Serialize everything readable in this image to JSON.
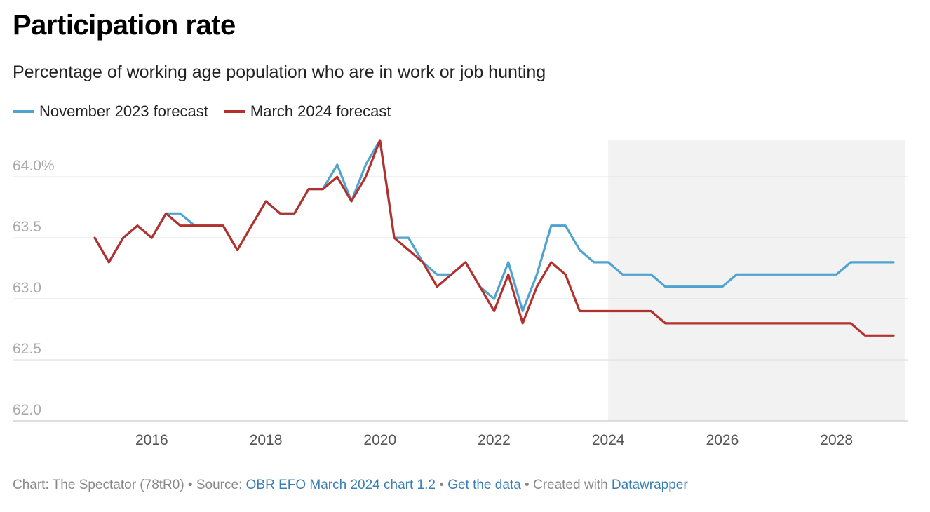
{
  "chart_data": {
    "type": "line",
    "title": "Participation rate",
    "subtitle": "Percentage of working age population who are in work or job hunting",
    "ylim": [
      62.0,
      64.3
    ],
    "xlim": [
      2015,
      2029
    ],
    "y_ticks": [
      "62.0",
      "62.5",
      "63.0",
      "63.5",
      "64.0%"
    ],
    "y_tick_values": [
      62.0,
      62.5,
      63.0,
      63.5,
      64.0
    ],
    "x_ticks": [
      "2016",
      "2018",
      "2020",
      "2022",
      "2024",
      "2026",
      "2028"
    ],
    "x_tick_values": [
      2016,
      2018,
      2020,
      2022,
      2024,
      2026,
      2028
    ],
    "grid": true,
    "legend_position": "top-left",
    "forecast_shaded_from": 2024,
    "forecast_shaded_to": 2029.2,
    "series": [
      {
        "name": "November 2023 forecast",
        "color": "#4ea3cf",
        "points": [
          [
            2015.0,
            63.5
          ],
          [
            2015.25,
            63.3
          ],
          [
            2015.5,
            63.5
          ],
          [
            2015.75,
            63.6
          ],
          [
            2016.0,
            63.5
          ],
          [
            2016.25,
            63.7
          ],
          [
            2016.5,
            63.7
          ],
          [
            2016.75,
            63.6
          ],
          [
            2017.0,
            63.6
          ],
          [
            2017.25,
            63.6
          ],
          [
            2017.5,
            63.4
          ],
          [
            2017.75,
            63.6
          ],
          [
            2018.0,
            63.8
          ],
          [
            2018.25,
            63.7
          ],
          [
            2018.5,
            63.7
          ],
          [
            2018.75,
            63.9
          ],
          [
            2019.0,
            63.9
          ],
          [
            2019.25,
            64.1
          ],
          [
            2019.5,
            63.8
          ],
          [
            2019.75,
            64.1
          ],
          [
            2020.0,
            64.3
          ],
          [
            2020.25,
            63.5
          ],
          [
            2020.5,
            63.5
          ],
          [
            2020.75,
            63.3
          ],
          [
            2021.0,
            63.2
          ],
          [
            2021.25,
            63.2
          ],
          [
            2021.5,
            63.3
          ],
          [
            2021.75,
            63.1
          ],
          [
            2022.0,
            63.0
          ],
          [
            2022.25,
            63.3
          ],
          [
            2022.5,
            62.9
          ],
          [
            2022.75,
            63.2
          ],
          [
            2023.0,
            63.6
          ],
          [
            2023.25,
            63.6
          ],
          [
            2023.5,
            63.4
          ],
          [
            2023.75,
            63.3
          ],
          [
            2024.0,
            63.3
          ],
          [
            2024.25,
            63.2
          ],
          [
            2024.5,
            63.2
          ],
          [
            2024.75,
            63.2
          ],
          [
            2025.0,
            63.1
          ],
          [
            2025.25,
            63.1
          ],
          [
            2025.5,
            63.1
          ],
          [
            2025.75,
            63.1
          ],
          [
            2026.0,
            63.1
          ],
          [
            2026.25,
            63.2
          ],
          [
            2026.5,
            63.2
          ],
          [
            2026.75,
            63.2
          ],
          [
            2027.0,
            63.2
          ],
          [
            2027.25,
            63.2
          ],
          [
            2027.5,
            63.2
          ],
          [
            2027.75,
            63.2
          ],
          [
            2028.0,
            63.2
          ],
          [
            2028.25,
            63.3
          ],
          [
            2028.5,
            63.3
          ],
          [
            2028.75,
            63.3
          ],
          [
            2029.0,
            63.3
          ]
        ]
      },
      {
        "name": "March 2024 forecast",
        "color": "#b3312d",
        "points": [
          [
            2015.0,
            63.5
          ],
          [
            2015.25,
            63.3
          ],
          [
            2015.5,
            63.5
          ],
          [
            2015.75,
            63.6
          ],
          [
            2016.0,
            63.5
          ],
          [
            2016.25,
            63.7
          ],
          [
            2016.5,
            63.6
          ],
          [
            2016.75,
            63.6
          ],
          [
            2017.0,
            63.6
          ],
          [
            2017.25,
            63.6
          ],
          [
            2017.5,
            63.4
          ],
          [
            2017.75,
            63.6
          ],
          [
            2018.0,
            63.8
          ],
          [
            2018.25,
            63.7
          ],
          [
            2018.5,
            63.7
          ],
          [
            2018.75,
            63.9
          ],
          [
            2019.0,
            63.9
          ],
          [
            2019.25,
            64.0
          ],
          [
            2019.5,
            63.8
          ],
          [
            2019.75,
            64.0
          ],
          [
            2020.0,
            64.3
          ],
          [
            2020.25,
            63.5
          ],
          [
            2020.5,
            63.4
          ],
          [
            2020.75,
            63.3
          ],
          [
            2021.0,
            63.1
          ],
          [
            2021.25,
            63.2
          ],
          [
            2021.5,
            63.3
          ],
          [
            2021.75,
            63.1
          ],
          [
            2022.0,
            62.9
          ],
          [
            2022.25,
            63.2
          ],
          [
            2022.5,
            62.8
          ],
          [
            2022.75,
            63.1
          ],
          [
            2023.0,
            63.3
          ],
          [
            2023.25,
            63.2
          ],
          [
            2023.5,
            62.9
          ],
          [
            2023.75,
            62.9
          ],
          [
            2024.0,
            62.9
          ],
          [
            2024.25,
            62.9
          ],
          [
            2024.5,
            62.9
          ],
          [
            2024.75,
            62.9
          ],
          [
            2025.0,
            62.8
          ],
          [
            2025.25,
            62.8
          ],
          [
            2025.5,
            62.8
          ],
          [
            2025.75,
            62.8
          ],
          [
            2026.0,
            62.8
          ],
          [
            2026.25,
            62.8
          ],
          [
            2026.5,
            62.8
          ],
          [
            2026.75,
            62.8
          ],
          [
            2027.0,
            62.8
          ],
          [
            2027.25,
            62.8
          ],
          [
            2027.5,
            62.8
          ],
          [
            2027.75,
            62.8
          ],
          [
            2028.0,
            62.8
          ],
          [
            2028.25,
            62.8
          ],
          [
            2028.5,
            62.7
          ],
          [
            2028.75,
            62.7
          ],
          [
            2029.0,
            62.7
          ]
        ]
      }
    ]
  },
  "footer": {
    "chart_credit": "Chart: The Spectator (78tR0)",
    "sep1": " • Source: ",
    "source_link": "OBR EFO March 2024 chart 1.2",
    "sep2": " • ",
    "data_link": "Get the data",
    "sep3": " • Created with ",
    "dw_link": "Datawrapper"
  }
}
